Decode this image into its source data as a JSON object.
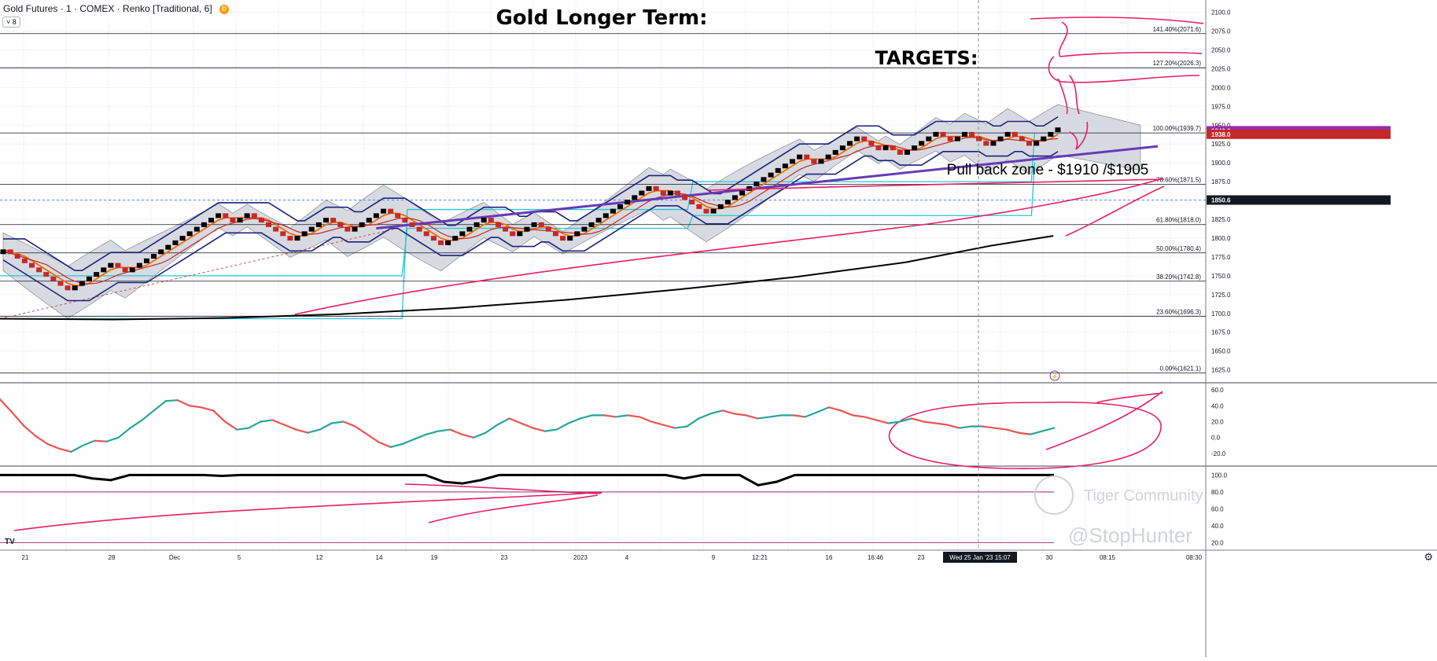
{
  "header": {
    "symbol_line": "Gold Futures · 1 · COMEX · Renko [Traditional, 6]",
    "badge": "D",
    "collapse_label": "˅ 8"
  },
  "annotations": {
    "title": "Gold Longer Term:",
    "targets": "TARGETS:",
    "pullback": "Pull back zone - $1910 /$1905"
  },
  "watermark": {
    "community": "Tiger Community",
    "handle": "@StopHunter"
  },
  "colors": {
    "up_brick": "#000000",
    "down_brick": "#c62828",
    "channel_blue": "#1a237e",
    "ma_orange": "#ef6c00",
    "ma_red": "#c62828",
    "cloud_fill": "#d1d4dc",
    "trend_purple": "#673ab7",
    "drawing_pink": "#e91e63",
    "box_cyan": "#26c6da",
    "long_ma": "#000000",
    "osc_up": "#26a69a",
    "osc_down": "#ef5350",
    "price_magenta": "#9c27b0",
    "price_red": "#c62828"
  },
  "chart_data": {
    "type": "line",
    "instrument": "Gold Futures · COMEX · Renko [Traditional, 6]",
    "y_axis": [
      "2100.0",
      "2075.0",
      "2050.0",
      "2025.0",
      "2000.0",
      "1975.0",
      "1950.0",
      "1925.0",
      "1900.0",
      "1875.0",
      "1850.0",
      "1825.0",
      "1800.0",
      "1775.0",
      "1750.0",
      "1725.0",
      "1700.0",
      "1675.0",
      "1650.0",
      "1625.0"
    ],
    "ylim": [
      1610,
      2110
    ],
    "x_ticks": [
      "21",
      "28",
      "Dec",
      "5",
      "12",
      "14",
      "19",
      "23",
      "2023",
      "4",
      "9",
      "12:21",
      "16",
      "16:46",
      "23",
      "Wed 25 Jan '23  15:07",
      "30",
      "08:15",
      "08:30"
    ],
    "crosshair_label": "Wed 25 Jan '23  15:07",
    "fib_levels": [
      {
        "label": "141.40%(2071.6)",
        "value": 2071.6
      },
      {
        "label": "127.20%(2026.3)",
        "value": 2026.3
      },
      {
        "label": "100.00%(1939.7)",
        "value": 1939.7
      },
      {
        "label": "78.60%(1871.5)",
        "value": 1871.5
      },
      {
        "label": "61.80%(1818.0)",
        "value": 1818.0
      },
      {
        "label": "50.00%(1780.4)",
        "value": 1780.4
      },
      {
        "label": "38.20%(1742.8)",
        "value": 1742.8
      },
      {
        "label": "23.60%(1696.3)",
        "value": 1696.3
      },
      {
        "label": "0.00%(1621.1)",
        "value": 1621.1
      }
    ],
    "price_labels": [
      {
        "text": "1942.6",
        "value": 1942.6,
        "color": "#9c27b0"
      },
      {
        "text": "1938.0",
        "value": 1938.0,
        "color": "#c62828"
      },
      {
        "text": "1850.6",
        "value": 1850.6,
        "color": "#131722"
      }
    ],
    "renko_close": [
      1785,
      1779,
      1773,
      1767,
      1761,
      1755,
      1749,
      1743,
      1737,
      1731,
      1737,
      1743,
      1749,
      1755,
      1761,
      1767,
      1761,
      1755,
      1761,
      1767,
      1773,
      1779,
      1785,
      1791,
      1797,
      1803,
      1809,
      1815,
      1821,
      1827,
      1833,
      1827,
      1821,
      1827,
      1833,
      1827,
      1821,
      1815,
      1809,
      1803,
      1797,
      1803,
      1809,
      1815,
      1821,
      1827,
      1821,
      1815,
      1809,
      1815,
      1821,
      1827,
      1833,
      1839,
      1833,
      1827,
      1821,
      1815,
      1809,
      1803,
      1797,
      1791,
      1797,
      1803,
      1809,
      1815,
      1821,
      1827,
      1821,
      1815,
      1809,
      1803,
      1809,
      1815,
      1821,
      1815,
      1809,
      1803,
      1797,
      1803,
      1809,
      1815,
      1821,
      1827,
      1833,
      1839,
      1845,
      1851,
      1857,
      1863,
      1869,
      1863,
      1857,
      1863,
      1857,
      1851,
      1845,
      1839,
      1833,
      1839,
      1845,
      1851,
      1857,
      1863,
      1869,
      1875,
      1881,
      1887,
      1893,
      1899,
      1905,
      1911,
      1905,
      1899,
      1905,
      1911,
      1917,
      1923,
      1929,
      1935,
      1929,
      1923,
      1917,
      1923,
      1917,
      1911,
      1917,
      1923,
      1929,
      1935,
      1941,
      1935,
      1929,
      1935,
      1941,
      1935,
      1929,
      1923,
      1929,
      1935,
      1941,
      1935,
      1929,
      1923,
      1929,
      1935,
      1941,
      1947
    ],
    "long_ma": [
      [
        0,
        1693
      ],
      [
        0.1,
        1692
      ],
      [
        0.2,
        1694
      ],
      [
        0.3,
        1699
      ],
      [
        0.4,
        1707
      ],
      [
        0.5,
        1718
      ],
      [
        0.6,
        1732
      ],
      [
        0.7,
        1748
      ],
      [
        0.8,
        1768
      ],
      [
        0.875,
        1790
      ],
      [
        0.93,
        1803
      ]
    ],
    "oscillator": {
      "axis": [
        "60.0",
        "40.0",
        "20.0",
        "0.0",
        "-20.0"
      ],
      "ylim": [
        -30,
        65
      ],
      "values": [
        48,
        32,
        15,
        2,
        -8,
        -14,
        -18,
        -10,
        -4,
        -5,
        0,
        12,
        22,
        34,
        46,
        47,
        40,
        38,
        34,
        20,
        10,
        12,
        20,
        22,
        16,
        10,
        6,
        10,
        18,
        20,
        14,
        4,
        -6,
        -12,
        -8,
        -2,
        4,
        8,
        10,
        4,
        0,
        6,
        16,
        24,
        18,
        12,
        8,
        10,
        18,
        24,
        28,
        28,
        26,
        28,
        26,
        20,
        16,
        12,
        14,
        24,
        30,
        34,
        30,
        28,
        24,
        26,
        28,
        28,
        26,
        32,
        38,
        34,
        28,
        26,
        22,
        18,
        20,
        24,
        20,
        18,
        16,
        12,
        14,
        14,
        12,
        10,
        6,
        4,
        8,
        12
      ]
    },
    "lower_indicator": {
      "axis": [
        "100.0",
        "80.0",
        "60.0",
        "40.0",
        "20.0"
      ],
      "ylim": [
        15,
        105
      ],
      "bands": [
        80,
        20
      ],
      "values": [
        100,
        100,
        100,
        100,
        100,
        96,
        94,
        100,
        100,
        100,
        100,
        100,
        99,
        100,
        100,
        100,
        100,
        100,
        100,
        100,
        100,
        100,
        100,
        100,
        92,
        90,
        94,
        100,
        100,
        100,
        100,
        100,
        100,
        100,
        100,
        100,
        100,
        96,
        100,
        100,
        100,
        88,
        92,
        100,
        100,
        100,
        100,
        100,
        100,
        100,
        100,
        100,
        100,
        100,
        100,
        100,
        100,
        100
      ]
    }
  }
}
